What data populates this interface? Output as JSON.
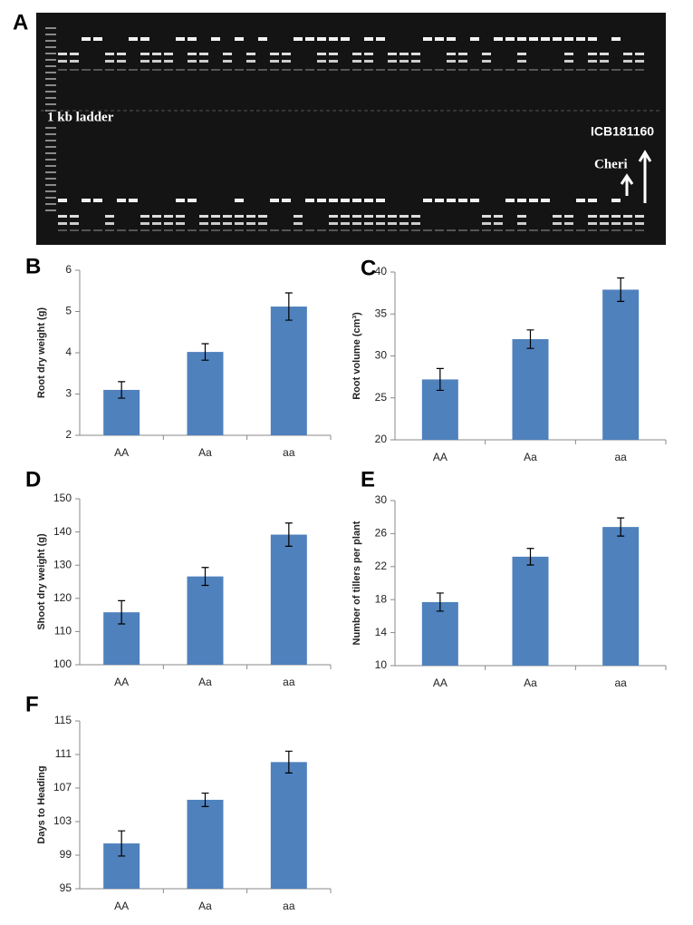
{
  "figure": {
    "panel_a": {
      "letter": "A",
      "ladder_label": "1 kb ladder",
      "parent1_label": "ICB181160",
      "parent2_label": "Cheri"
    }
  },
  "chart_data": [
    {
      "type": "bar",
      "panel": "B",
      "ylabel": "Root dry weight (g)",
      "categories": [
        "AA",
        "Aa",
        "aa"
      ],
      "values": [
        3.1,
        4.02,
        5.12
      ],
      "errors": [
        0.2,
        0.2,
        0.33
      ],
      "color": "#4f81bd",
      "ylim": [
        2,
        6
      ],
      "yticks": [
        2,
        3,
        4,
        5,
        6
      ]
    },
    {
      "type": "bar",
      "panel": "C",
      "ylabel": "Root volume (cm³)",
      "categories": [
        "AA",
        "Aa",
        "aa"
      ],
      "values": [
        27.2,
        32.0,
        37.9
      ],
      "errors": [
        1.3,
        1.1,
        1.4
      ],
      "color": "#4f81bd",
      "ylim": [
        20,
        40
      ],
      "yticks": [
        20,
        25,
        30,
        35,
        40
      ]
    },
    {
      "type": "bar",
      "panel": "D",
      "ylabel": "Shoot dry weight (g)",
      "categories": [
        "AA",
        "Aa",
        "aa"
      ],
      "values": [
        115.8,
        126.6,
        139.2
      ],
      "errors": [
        3.5,
        2.7,
        3.5
      ],
      "color": "#4f81bd",
      "ylim": [
        100,
        150
      ],
      "yticks": [
        100,
        110,
        120,
        130,
        140,
        150
      ]
    },
    {
      "type": "bar",
      "panel": "E",
      "ylabel": "Number of tillers per plant",
      "categories": [
        "AA",
        "Aa",
        "aa"
      ],
      "values": [
        17.7,
        23.2,
        26.8
      ],
      "errors": [
        1.1,
        1.0,
        1.1
      ],
      "color": "#4f81bd",
      "ylim": [
        10,
        30
      ],
      "yticks": [
        10,
        14,
        18,
        22,
        26,
        30
      ]
    },
    {
      "type": "bar",
      "panel": "F",
      "ylabel": "Days to Heading",
      "categories": [
        "AA",
        "Aa",
        "aa"
      ],
      "values": [
        100.4,
        105.6,
        110.1
      ],
      "errors": [
        1.5,
        0.8,
        1.3
      ],
      "color": "#4f81bd",
      "ylim": [
        95,
        115
      ],
      "yticks": [
        95,
        99,
        103,
        107,
        111,
        115
      ]
    }
  ]
}
